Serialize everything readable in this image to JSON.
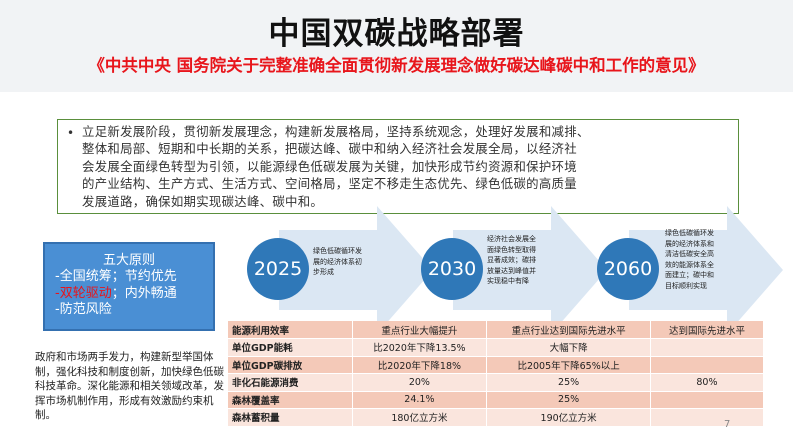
{
  "header": {
    "title": "中国双碳战略部署",
    "subtitle": "《中共中央 国务院关于完整准确全面贯彻新发展理念做好碳达峰碳中和工作的意见》"
  },
  "bullet": {
    "lines": [
      "立足新发展阶段，贯彻新发展理念，构建新发展格局，坚持系统观念，处理好发展和减排、",
      "整体和局部、短期和中长期的关系，把碳达峰、碳中和纳入经济社会发展全局，以经济社",
      "会发展全面绿色转型为引领，以能源绿色低碳发展为关键，加快形成节约资源和保护环境",
      "的产业结构、生产方式、生活方式、空间格局，坚定不移走生态优先、绿色低碳的高质量",
      "发展道路，确保如期实现碳达峰、碳中和。"
    ]
  },
  "principles": {
    "title": "五大原则",
    "line1": "-全国统筹；节约优先",
    "line2_red": "-双轮驱动",
    "line2_rest": "；内外畅通",
    "line3": "-防范风险"
  },
  "left_note": "政府和市场两手发力，构建新型举国体制，强化科技和制度创新，加快绿色低碳科技革命。深化能源和相关领域改革，发挥市场机制作用，形成有效激励约束机制。",
  "milestones": [
    {
      "year": "2025",
      "lines": [
        "绿色低碳循环发",
        "展的经济体系初",
        "步形成"
      ]
    },
    {
      "year": "2030",
      "lines": [
        "经济社会发展全",
        "面绿色转型取得",
        "显著成效；碳排",
        "放量达到峰值并",
        "实现稳中有降"
      ]
    },
    {
      "year": "2060",
      "lines": [
        "绿色低碳循环发",
        "展的经济体系和",
        "清洁低碳安全高",
        "效的能源体系全",
        "面建立；碳中和",
        "目标顺利实现"
      ]
    }
  ],
  "table": {
    "rows": [
      {
        "label": "能源利用效率",
        "c1": "重点行业大幅提升",
        "c2": "重点行业达到国际先进水平",
        "c3": "达到国际先进水平"
      },
      {
        "label": "单位GDP能耗",
        "c1": "比2020年下降13.5%",
        "c2": "大幅下降",
        "c3": ""
      },
      {
        "label": "单位GDP碳排放",
        "c1": "比2020年下降18%",
        "c2": "比2005年下降65%以上",
        "c3": ""
      },
      {
        "label": "非化石能源消费",
        "c1": "20%",
        "c2": "25%",
        "c3": "80%"
      },
      {
        "label": "森林覆盖率",
        "c1": "24.1%",
        "c2": "25%",
        "c3": ""
      },
      {
        "label": "森林蓄积量",
        "c1": "180亿立方米",
        "c2": "190亿立方米",
        "c3": ""
      }
    ]
  },
  "colors": {
    "title_red": "#e8151b",
    "circle_blue": "#2f78b8",
    "principles_blue": "#4a8fd4",
    "box_green": "#5a8f3c",
    "table_row_dark": "#f4c9b8",
    "table_row_light": "#fae5dd"
  },
  "page_number": "7"
}
